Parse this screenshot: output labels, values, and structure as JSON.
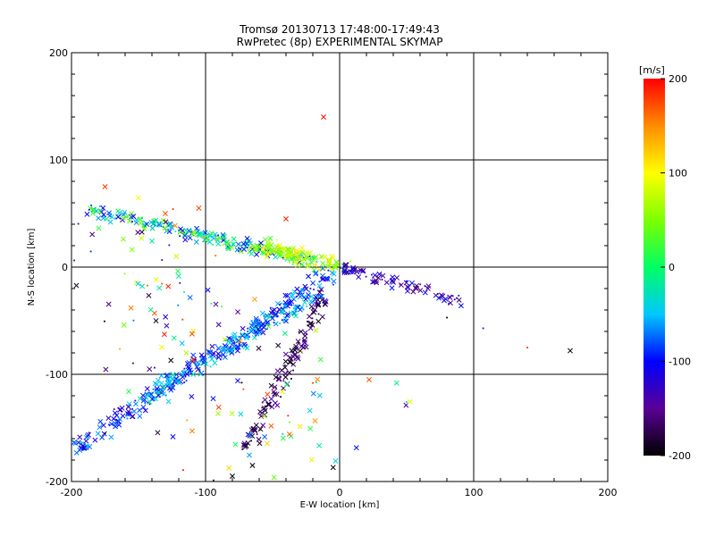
{
  "chart_data": {
    "type": "scatter",
    "title": "Tromsø 20130713 17:48:00-17:49:43",
    "subtitle": "RwPretec (8p) EXPERIMENTAL SKYMAP",
    "xlabel": "E-W location [km]",
    "ylabel": "N-S location [km]",
    "xlim": [
      -200,
      200
    ],
    "ylim": [
      -200,
      200
    ],
    "xticks": [
      -200,
      -100,
      0,
      100,
      200
    ],
    "yticks": [
      -200,
      -100,
      0,
      100,
      200
    ],
    "grid": true,
    "colorbar": {
      "label": "[m/s]",
      "min": -200,
      "max": 200,
      "ticks": [
        200,
        100,
        0,
        -100,
        -200
      ]
    },
    "clusters": [
      {
        "x0": -190,
        "y0": 55,
        "x1": -20,
        "y1": 5,
        "count": 240,
        "spread": 5,
        "vmin": -120,
        "vmax": 60
      },
      {
        "x0": -60,
        "y0": 20,
        "x1": 0,
        "y1": 0,
        "count": 120,
        "spread": 6,
        "vmin": 20,
        "vmax": 120
      },
      {
        "x0": -198,
        "y0": -170,
        "x1": -5,
        "y1": -5,
        "count": 280,
        "spread": 6,
        "vmin": -140,
        "vmax": -40
      },
      {
        "x0": -150,
        "y0": -125,
        "x1": -15,
        "y1": -25,
        "count": 150,
        "spread": 5,
        "vmin": -110,
        "vmax": -20
      },
      {
        "x0": -70,
        "y0": -170,
        "x1": -10,
        "y1": -25,
        "count": 130,
        "spread": 5,
        "vmin": -200,
        "vmax": -130
      },
      {
        "x0": 0,
        "y0": 0,
        "x1": 90,
        "y1": -32,
        "count": 80,
        "spread": 4,
        "vmin": -170,
        "vmax": -90
      },
      {
        "x0": -200,
        "y0": 30,
        "x1": 0,
        "y1": -200,
        "count": 170,
        "spread": 55,
        "vmin": -200,
        "vmax": 200
      }
    ],
    "points": [
      {
        "x": -12,
        "y": 140,
        "v": 195
      },
      {
        "x": -175,
        "y": 75,
        "v": 180
      },
      {
        "x": -105,
        "y": 55,
        "v": 175
      },
      {
        "x": 107,
        "y": -57,
        "v": -150
      },
      {
        "x": 172,
        "y": -78,
        "v": -195
      },
      {
        "x": 140,
        "y": -75,
        "v": 185
      },
      {
        "x": 80,
        "y": -47,
        "v": -190
      },
      {
        "x": 22,
        "y": -105,
        "v": 170
      },
      {
        "x": -40,
        "y": 45,
        "v": 190
      },
      {
        "x": -130,
        "y": 50,
        "v": 170
      },
      {
        "x": -20,
        "y": -108,
        "v": 180
      },
      {
        "x": -175,
        "y": -155,
        "v": -200
      },
      {
        "x": -80,
        "y": -195,
        "v": -200
      },
      {
        "x": -65,
        "y": -185,
        "v": -200
      }
    ]
  }
}
